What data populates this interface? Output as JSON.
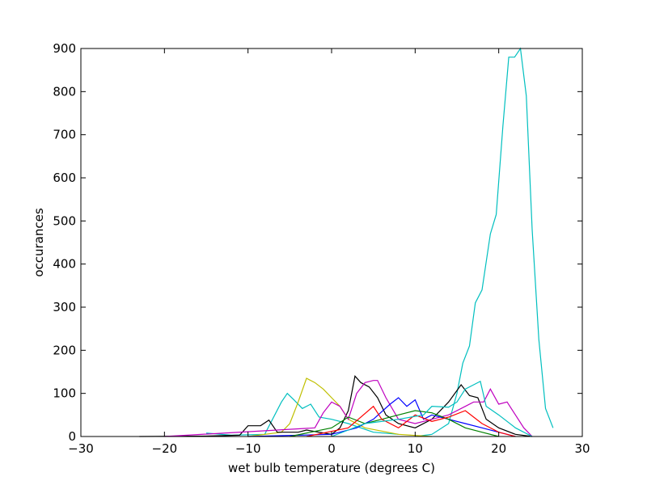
{
  "chart_data": {
    "type": "line",
    "xlabel": "wet bulb temperature (degrees C)",
    "ylabel": "occurances",
    "xlim": [
      -30,
      30
    ],
    "ylim": [
      0,
      900
    ],
    "xticks": [
      {
        "value": -30,
        "label": "−30"
      },
      {
        "value": -20,
        "label": "−20"
      },
      {
        "value": -10,
        "label": "−10"
      },
      0,
      10,
      20,
      30
    ],
    "yticks": [
      0,
      100,
      200,
      300,
      400,
      500,
      600,
      700,
      800,
      900
    ],
    "grid": false,
    "series": [
      {
        "color": "#00bfbf",
        "x": [
          10,
          12,
          14,
          15,
          15.7,
          16.5,
          17.2,
          18,
          19,
          19.7,
          20.5,
          21.2,
          21.9,
          22.6,
          23.3,
          24,
          24.8,
          25.6,
          26.5
        ],
        "values": [
          0,
          5,
          30,
          100,
          170,
          210,
          310,
          340,
          470,
          515,
          720,
          880,
          880,
          900,
          790,
          480,
          225,
          65,
          20
        ]
      },
      {
        "color": "#00bfbf",
        "x": [
          -15,
          -12,
          -8,
          -6,
          -5.3,
          -4.5,
          -3.5,
          -2.5,
          -1.5,
          0,
          2,
          5,
          8
        ],
        "values": [
          8,
          3,
          5,
          80,
          100,
          85,
          65,
          75,
          45,
          40,
          30,
          10,
          5
        ]
      },
      {
        "color": "#bfbf00",
        "x": [
          -10,
          -6,
          -5,
          -4,
          -3,
          -2,
          -1,
          0,
          1,
          2,
          4,
          8,
          12
        ],
        "values": [
          0,
          10,
          30,
          80,
          135,
          125,
          110,
          90,
          70,
          40,
          20,
          5,
          0
        ]
      },
      {
        "color": "#000000",
        "x": [
          -23,
          -15,
          -11,
          -10,
          -8.5,
          -7.5,
          -6.5,
          -4,
          -3,
          0,
          1,
          2,
          2.8,
          3.5,
          4.5,
          5.5,
          6.5,
          8,
          10,
          12,
          14,
          15.5,
          16.5,
          17.5,
          18.5,
          20,
          22,
          24
        ],
        "values": [
          0,
          1,
          3,
          25,
          25,
          38,
          10,
          10,
          15,
          5,
          20,
          60,
          140,
          125,
          115,
          90,
          50,
          30,
          20,
          40,
          80,
          120,
          95,
          90,
          40,
          20,
          5,
          0
        ]
      },
      {
        "color": "#bf00bf",
        "x": [
          -20,
          -2,
          -1,
          0,
          1,
          2,
          3,
          4,
          5,
          5.5,
          6.5,
          8,
          10,
          12,
          14,
          16,
          17,
          18.2,
          19,
          20,
          21,
          22,
          23,
          24
        ],
        "values": [
          0,
          20,
          55,
          80,
          70,
          40,
          100,
          125,
          130,
          130,
          90,
          40,
          30,
          40,
          50,
          70,
          80,
          80,
          110,
          75,
          80,
          50,
          20,
          0
        ]
      },
      {
        "color": "#0000ff",
        "x": [
          -10,
          0,
          3,
          5,
          7,
          8,
          9,
          10,
          11,
          12,
          14,
          16,
          18,
          20,
          22
        ],
        "values": [
          0,
          5,
          20,
          40,
          75,
          90,
          70,
          85,
          40,
          50,
          40,
          30,
          20,
          10,
          0
        ]
      },
      {
        "color": "#008000",
        "x": [
          -5,
          0,
          2,
          4,
          6,
          8,
          10,
          12,
          14,
          16,
          18,
          20
        ],
        "values": [
          0,
          20,
          45,
          30,
          40,
          50,
          60,
          55,
          40,
          20,
          10,
          0
        ]
      },
      {
        "color": "#ff0000",
        "x": [
          -3,
          2,
          5,
          6,
          8,
          10,
          12,
          14,
          16,
          18,
          20,
          22
        ],
        "values": [
          0,
          20,
          70,
          40,
          20,
          50,
          35,
          45,
          60,
          30,
          10,
          0
        ]
      },
      {
        "color": "#00bfbf",
        "x": [
          0,
          4,
          8,
          11,
          12,
          14,
          15,
          16,
          17,
          17.8,
          18.5,
          20,
          22,
          24
        ],
        "values": [
          0,
          30,
          40,
          50,
          70,
          68,
          80,
          110,
          120,
          128,
          70,
          50,
          20,
          0
        ]
      }
    ]
  }
}
